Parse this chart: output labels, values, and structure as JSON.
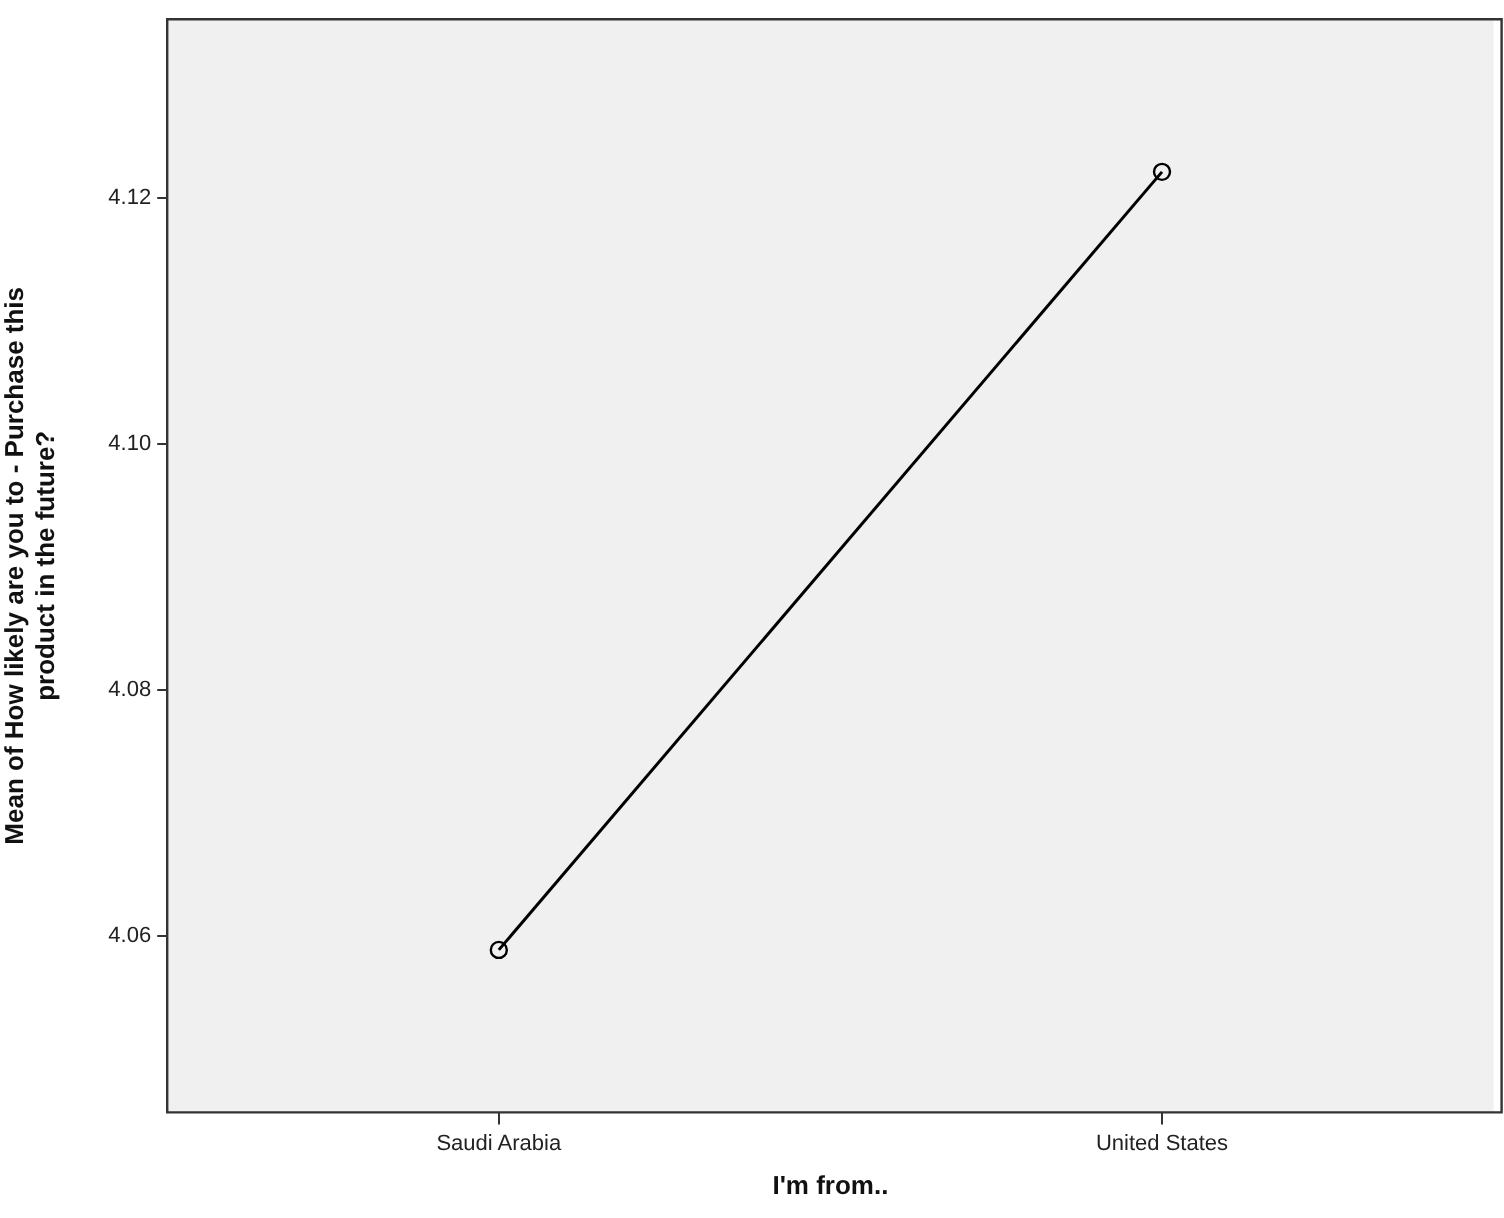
{
  "chart_data": {
    "type": "line",
    "xlabel": "I'm from..",
    "ylabel": "Mean of How likely are you to - Purchase this product in the future?",
    "categories": [
      "Saudi Arabia",
      "United States"
    ],
    "series": [
      {
        "color": "#000000",
        "values": [
          4.0589,
          4.1221
        ]
      }
    ],
    "ylim": [
      4.0457,
      4.1345
    ],
    "yticks": [
      4.06,
      4.08,
      {
        "value": 4.1,
        "label": "4.10"
      },
      4.12
    ],
    "grid": false,
    "legend": false,
    "marker": "circle",
    "line_style": "solid"
  }
}
